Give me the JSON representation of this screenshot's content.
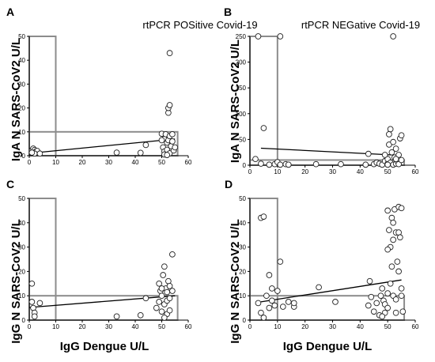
{
  "chart_data": [
    {
      "type": "scatter",
      "panel": "A",
      "title": "rtPCR POSitive Covid-19",
      "ylabel": "IgA N SARS-CoV2 U/L",
      "xlabel": "",
      "xlim": [
        0,
        60
      ],
      "ylim": [
        0,
        50
      ],
      "xticks": [
        "0",
        "10",
        "20",
        "30",
        "40",
        "50",
        "60"
      ],
      "yticks": [
        "0",
        "10",
        "20",
        "30",
        "40",
        "50"
      ],
      "cutoff_box": {
        "x": [
          0,
          10
        ],
        "y": [
          0,
          50
        ]
      },
      "cutoff_box_h": {
        "x": [
          0,
          56
        ],
        "y": [
          0,
          10
        ]
      },
      "trend": {
        "x": [
          0,
          55
        ],
        "y": [
          1.0,
          7.0
        ]
      },
      "points": [
        [
          1,
          2.2
        ],
        [
          1.5,
          3.0
        ],
        [
          2,
          2.4
        ],
        [
          2.5,
          1.8
        ],
        [
          3,
          2.0
        ],
        [
          2,
          0.9
        ],
        [
          4,
          0.9
        ],
        [
          1,
          1.3
        ],
        [
          33,
          1.3
        ],
        [
          42,
          1.2
        ],
        [
          44,
          4.5
        ],
        [
          50,
          9.2
        ],
        [
          50.5,
          3.5
        ],
        [
          51,
          1.8
        ],
        [
          51,
          7.0
        ],
        [
          51.5,
          9.0
        ],
        [
          52,
          5.5
        ],
        [
          52,
          2.5
        ],
        [
          52.5,
          6.5
        ],
        [
          52.5,
          18.0
        ],
        [
          52.5,
          20.0
        ],
        [
          53,
          21.2
        ],
        [
          53,
          8.2
        ],
        [
          53,
          1.0
        ],
        [
          53,
          43.0
        ],
        [
          53.5,
          4.0
        ],
        [
          54,
          9.0
        ],
        [
          54,
          6.0
        ],
        [
          54.5,
          2.2
        ],
        [
          55,
          3.5
        ],
        [
          51,
          0.5
        ],
        [
          52,
          0.3
        ],
        [
          50,
          6.5
        ]
      ]
    },
    {
      "type": "scatter",
      "panel": "B",
      "title": "rtPCR NEGative Covid-19",
      "ylabel": "IgA N SARS-CoV2 U/L",
      "xlabel": "",
      "xlim": [
        0,
        60
      ],
      "ylim": [
        0,
        250
      ],
      "xticks": [
        "0",
        "10",
        "20",
        "30",
        "40",
        "50",
        "60"
      ],
      "yticks": [
        "0",
        "50",
        "100",
        "150",
        "200",
        "250"
      ],
      "cutoff_box": {
        "x": [
          0,
          10
        ],
        "y": [
          0,
          250
        ]
      },
      "cutoff_box_h": {
        "x": [
          0,
          56
        ],
        "y": [
          0,
          10
        ]
      },
      "trend": {
        "x": [
          4,
          55
        ],
        "y": [
          33,
          19
        ]
      },
      "points": [
        [
          3,
          250
        ],
        [
          11,
          250
        ],
        [
          52,
          250
        ],
        [
          5,
          72
        ],
        [
          2,
          12
        ],
        [
          4,
          3
        ],
        [
          7,
          1
        ],
        [
          9,
          2
        ],
        [
          10,
          6
        ],
        [
          11,
          1
        ],
        [
          13,
          2
        ],
        [
          14,
          1
        ],
        [
          24,
          2
        ],
        [
          33,
          2
        ],
        [
          42,
          1
        ],
        [
          43,
          22
        ],
        [
          45,
          2
        ],
        [
          46,
          5
        ],
        [
          47,
          3
        ],
        [
          48,
          1
        ],
        [
          49,
          8
        ],
        [
          50,
          3
        ],
        [
          50,
          12
        ],
        [
          50.5,
          40
        ],
        [
          50.5,
          60
        ],
        [
          51,
          70
        ],
        [
          51,
          5
        ],
        [
          51.5,
          25
        ],
        [
          52,
          1
        ],
        [
          52,
          45
        ],
        [
          52.5,
          15
        ],
        [
          53,
          3
        ],
        [
          53,
          32
        ],
        [
          53.5,
          8
        ],
        [
          54,
          2
        ],
        [
          54,
          20
        ],
        [
          54.5,
          52
        ],
        [
          55,
          10
        ],
        [
          55,
          58
        ],
        [
          53,
          12
        ],
        [
          49,
          20
        ],
        [
          50,
          1
        ]
      ]
    },
    {
      "type": "scatter",
      "panel": "C",
      "title": "",
      "ylabel": "IgG N SARS-CoV2 U/L",
      "xlabel": "IgG Dengue U/L",
      "xlim": [
        0,
        60
      ],
      "ylim": [
        0,
        50
      ],
      "xticks": [
        "0",
        "10",
        "20",
        "30",
        "40",
        "50",
        "60"
      ],
      "yticks": [
        "0",
        "10",
        "20",
        "30",
        "40",
        "50"
      ],
      "cutoff_box": {
        "x": [
          0,
          10
        ],
        "y": [
          0,
          50
        ]
      },
      "cutoff_box_h": {
        "x": [
          0,
          56
        ],
        "y": [
          0,
          10
        ]
      },
      "trend": {
        "x": [
          0,
          55
        ],
        "y": [
          5.2,
          10.0
        ]
      },
      "points": [
        [
          1,
          15
        ],
        [
          1,
          7.5
        ],
        [
          1.5,
          5
        ],
        [
          2,
          3
        ],
        [
          2,
          1.5
        ],
        [
          4,
          7
        ],
        [
          33,
          1.5
        ],
        [
          42,
          2
        ],
        [
          44,
          9
        ],
        [
          48,
          5
        ],
        [
          49,
          7.5
        ],
        [
          49,
          15
        ],
        [
          49.5,
          12
        ],
        [
          50,
          10
        ],
        [
          50,
          3.5
        ],
        [
          50.5,
          18.5
        ],
        [
          51,
          22
        ],
        [
          51,
          6.5
        ],
        [
          51.5,
          13
        ],
        [
          52,
          8
        ],
        [
          52,
          2.5
        ],
        [
          52,
          11.5
        ],
        [
          52.5,
          16
        ],
        [
          53,
          14
        ],
        [
          53,
          4
        ],
        [
          53,
          9
        ],
        [
          54,
          27
        ],
        [
          54,
          12
        ],
        [
          51,
          1
        ],
        [
          50,
          13
        ]
      ]
    },
    {
      "type": "scatter",
      "panel": "D",
      "title": "",
      "ylabel": "IgG N SARS-CoV2 U/L",
      "xlabel": "IgG Dengue U/L",
      "xlim": [
        0,
        60
      ],
      "ylim": [
        0,
        50
      ],
      "xticks": [
        "0",
        "10",
        "20",
        "30",
        "40",
        "50",
        "60"
      ],
      "yticks": [
        "0",
        "10",
        "20",
        "30",
        "40",
        "50"
      ],
      "cutoff_box": {
        "x": [
          0,
          10
        ],
        "y": [
          0,
          50
        ]
      },
      "cutoff_box_h": {
        "x": [
          0,
          56
        ],
        "y": [
          0,
          10
        ]
      },
      "trend": {
        "x": [
          4,
          55
        ],
        "y": [
          7.5,
          16.5
        ]
      },
      "points": [
        [
          4,
          42
        ],
        [
          5,
          42.5
        ],
        [
          11,
          24
        ],
        [
          7,
          18.5
        ],
        [
          8,
          13
        ],
        [
          3,
          7
        ],
        [
          4,
          3
        ],
        [
          5,
          1
        ],
        [
          6,
          10
        ],
        [
          7,
          5
        ],
        [
          8,
          8
        ],
        [
          9,
          6
        ],
        [
          10,
          12
        ],
        [
          12,
          5.5
        ],
        [
          14,
          7.5
        ],
        [
          16,
          5.5
        ],
        [
          16,
          7
        ],
        [
          25,
          13.5
        ],
        [
          31,
          7.5
        ],
        [
          43,
          6
        ],
        [
          43.5,
          16
        ],
        [
          45,
          3.5
        ],
        [
          46,
          7
        ],
        [
          47,
          2
        ],
        [
          47.5,
          10
        ],
        [
          48,
          13
        ],
        [
          48.5,
          8
        ],
        [
          49,
          6.5
        ],
        [
          49,
          3
        ],
        [
          50,
          45
        ],
        [
          50,
          11
        ],
        [
          50,
          5
        ],
        [
          50.5,
          37
        ],
        [
          51,
          30
        ],
        [
          51,
          15
        ],
        [
          51.5,
          42
        ],
        [
          51.5,
          22
        ],
        [
          52,
          40
        ],
        [
          52,
          33
        ],
        [
          52,
          10
        ],
        [
          52.5,
          45.5
        ],
        [
          53,
          36
        ],
        [
          53,
          8.5
        ],
        [
          53,
          3
        ],
        [
          53.5,
          24
        ],
        [
          54,
          46.5
        ],
        [
          54,
          36
        ],
        [
          54,
          20
        ],
        [
          54.5,
          34
        ],
        [
          55,
          46
        ],
        [
          55,
          13
        ],
        [
          55,
          10
        ],
        [
          55.5,
          3.5
        ],
        [
          50,
          29
        ],
        [
          48,
          1.5
        ],
        [
          44,
          9.5
        ]
      ]
    }
  ]
}
